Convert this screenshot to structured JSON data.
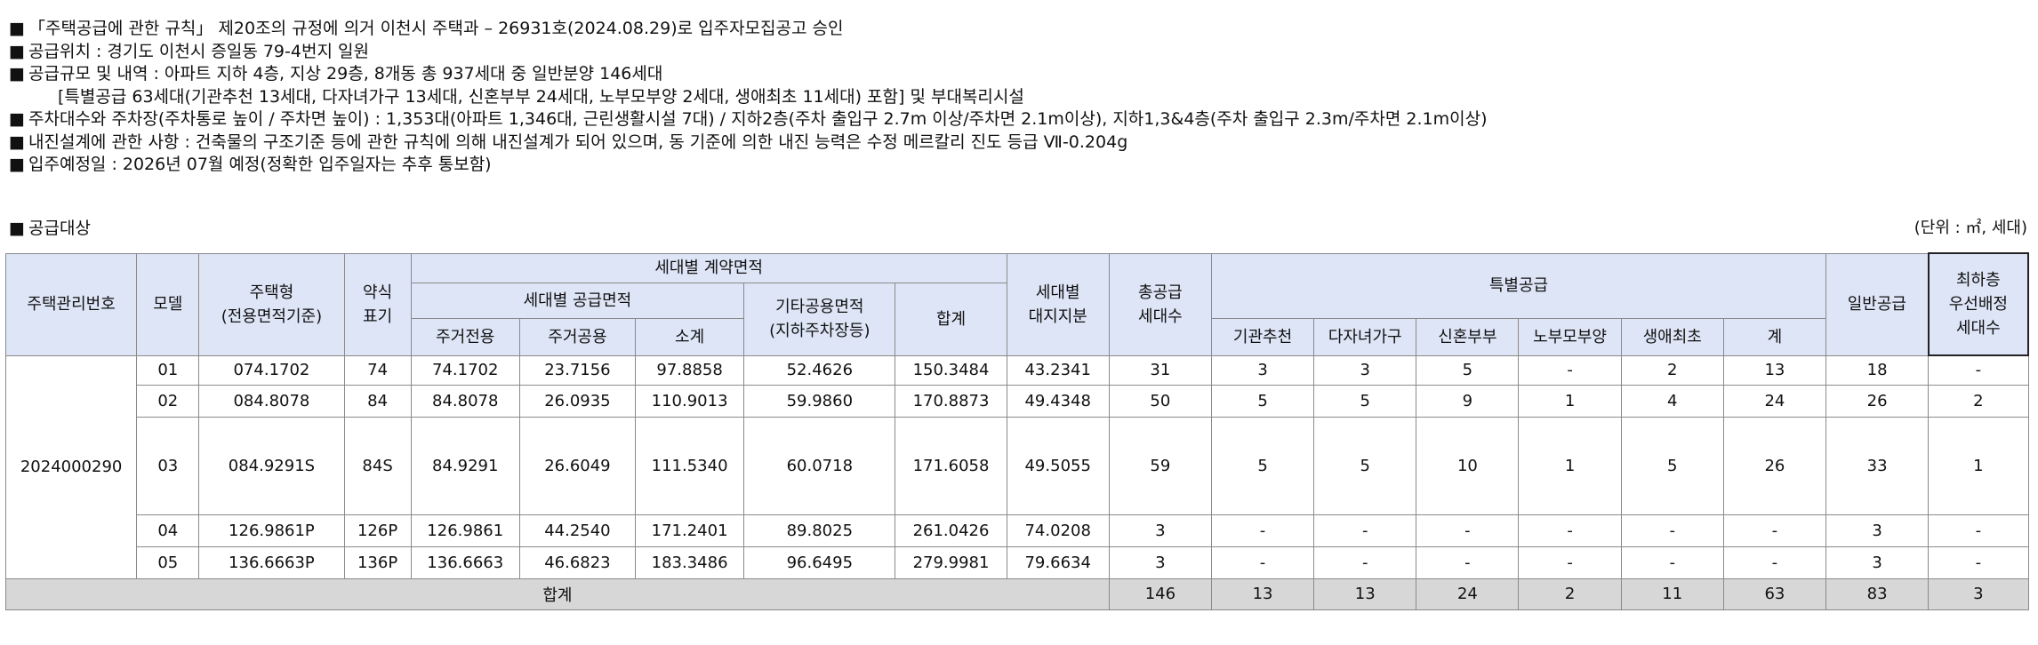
{
  "notices": [
    "「주택공급에 관한 규칙」 제20조의 규정에 의거 이천시 주택과 – 26931호(2024.08.29)로 입주자모집공고 승인",
    "공급위치 : 경기도 이천시 증일동 79-4번지 일원",
    "공급규모 및 내역 : 아파트 지하 4층, 지상 29층, 8개동 총 937세대 중 일반분양 146세대",
    "[특별공급 63세대(기관추천 13세대, 다자녀가구 13세대, 신혼부부 24세대, 노부모부양 2세대, 생애최초 11세대) 포함] 및 부대복리시설",
    "주차대수와 주차장(주차통로 높이 / 주차면 높이) : 1,353대(아파트 1,346대, 근린생활시설 7대) / 지하2층(주차 출입구 2.7m 이상/주차면 2.1m이상), 지하1,3&4층(주차 출입구 2.3m/주차면 2.1m이상)",
    "내진설계에 관한 사항 : 건축물의 구조기준 등에 관한 규칙에 의해 내진설계가 되어 있으며, 동 기준에 의한 내진 능력은 수정 메르칼리 진도 등급 Ⅶ-0.204g",
    "입주예정일 : 2026년 07월 예정(정확한 입주일자는 추후 통보함)"
  ],
  "bullet": "■",
  "section_title": "공급대상",
  "unit": "(단위 : ㎡, 세대)",
  "table": {
    "headers": {
      "mgmt_no": "주택관리번호",
      "model": "모델",
      "type_1": "주택형",
      "type_2": "(전용면적기준)",
      "abbr_1": "약식",
      "abbr_2": "표기",
      "contract_area": "세대별 계약면적",
      "supply_area": "세대별 공급면적",
      "excl": "주거전용",
      "common": "주거공용",
      "subtotal": "소계",
      "other_1": "기타공용면적",
      "other_2": "(지하주차장등)",
      "sum": "합계",
      "land_1": "세대별",
      "land_2": "대지지분",
      "total_units_1": "총공급",
      "total_units_2": "세대수",
      "special": "특별공급",
      "inst": "기관추천",
      "multi": "다자녀가구",
      "newly": "신혼부부",
      "parent": "노부모부양",
      "first": "생애최초",
      "sp_total": "계",
      "general": "일반공급",
      "lowfloor_1": "최하층",
      "lowfloor_2": "우선배정",
      "lowfloor_3": "세대수"
    },
    "mgmt_number": "2024000290",
    "rows": [
      {
        "model": "01",
        "type": "074.1702",
        "abbr": "74",
        "excl": "74.1702",
        "common": "23.7156",
        "subtotal": "97.8858",
        "other": "52.4626",
        "sum": "150.3484",
        "land": "43.2341",
        "total": "31",
        "inst": "3",
        "multi": "3",
        "newly": "5",
        "parent": "-",
        "first": "2",
        "sp_total": "13",
        "general": "18",
        "lowfloor": "-"
      },
      {
        "model": "02",
        "type": "084.8078",
        "abbr": "84",
        "excl": "84.8078",
        "common": "26.0935",
        "subtotal": "110.9013",
        "other": "59.9860",
        "sum": "170.8873",
        "land": "49.4348",
        "total": "50",
        "inst": "5",
        "multi": "5",
        "newly": "9",
        "parent": "1",
        "first": "4",
        "sp_total": "24",
        "general": "26",
        "lowfloor": "2"
      },
      {
        "model": "03",
        "type": "084.9291S",
        "abbr": "84S",
        "excl": "84.9291",
        "common": "26.6049",
        "subtotal": "111.5340",
        "other": "60.0718",
        "sum": "171.6058",
        "land": "49.5055",
        "total": "59",
        "inst": "5",
        "multi": "5",
        "newly": "10",
        "parent": "1",
        "first": "5",
        "sp_total": "26",
        "general": "33",
        "lowfloor": "1"
      },
      {
        "model": "04",
        "type": "126.9861P",
        "abbr": "126P",
        "excl": "126.9861",
        "common": "44.2540",
        "subtotal": "171.2401",
        "other": "89.8025",
        "sum": "261.0426",
        "land": "74.0208",
        "total": "3",
        "inst": "-",
        "multi": "-",
        "newly": "-",
        "parent": "-",
        "first": "-",
        "sp_total": "-",
        "general": "3",
        "lowfloor": "-"
      },
      {
        "model": "05",
        "type": "136.6663P",
        "abbr": "136P",
        "excl": "136.6663",
        "common": "46.6823",
        "subtotal": "183.3486",
        "other": "96.6495",
        "sum": "279.9981",
        "land": "79.6634",
        "total": "3",
        "inst": "-",
        "multi": "-",
        "newly": "-",
        "parent": "-",
        "first": "-",
        "sp_total": "-",
        "general": "3",
        "lowfloor": "-"
      }
    ],
    "total_row": {
      "label": "합계",
      "total": "146",
      "inst": "13",
      "multi": "13",
      "newly": "24",
      "parent": "2",
      "first": "11",
      "sp_total": "63",
      "general": "83",
      "lowfloor": "3"
    }
  }
}
